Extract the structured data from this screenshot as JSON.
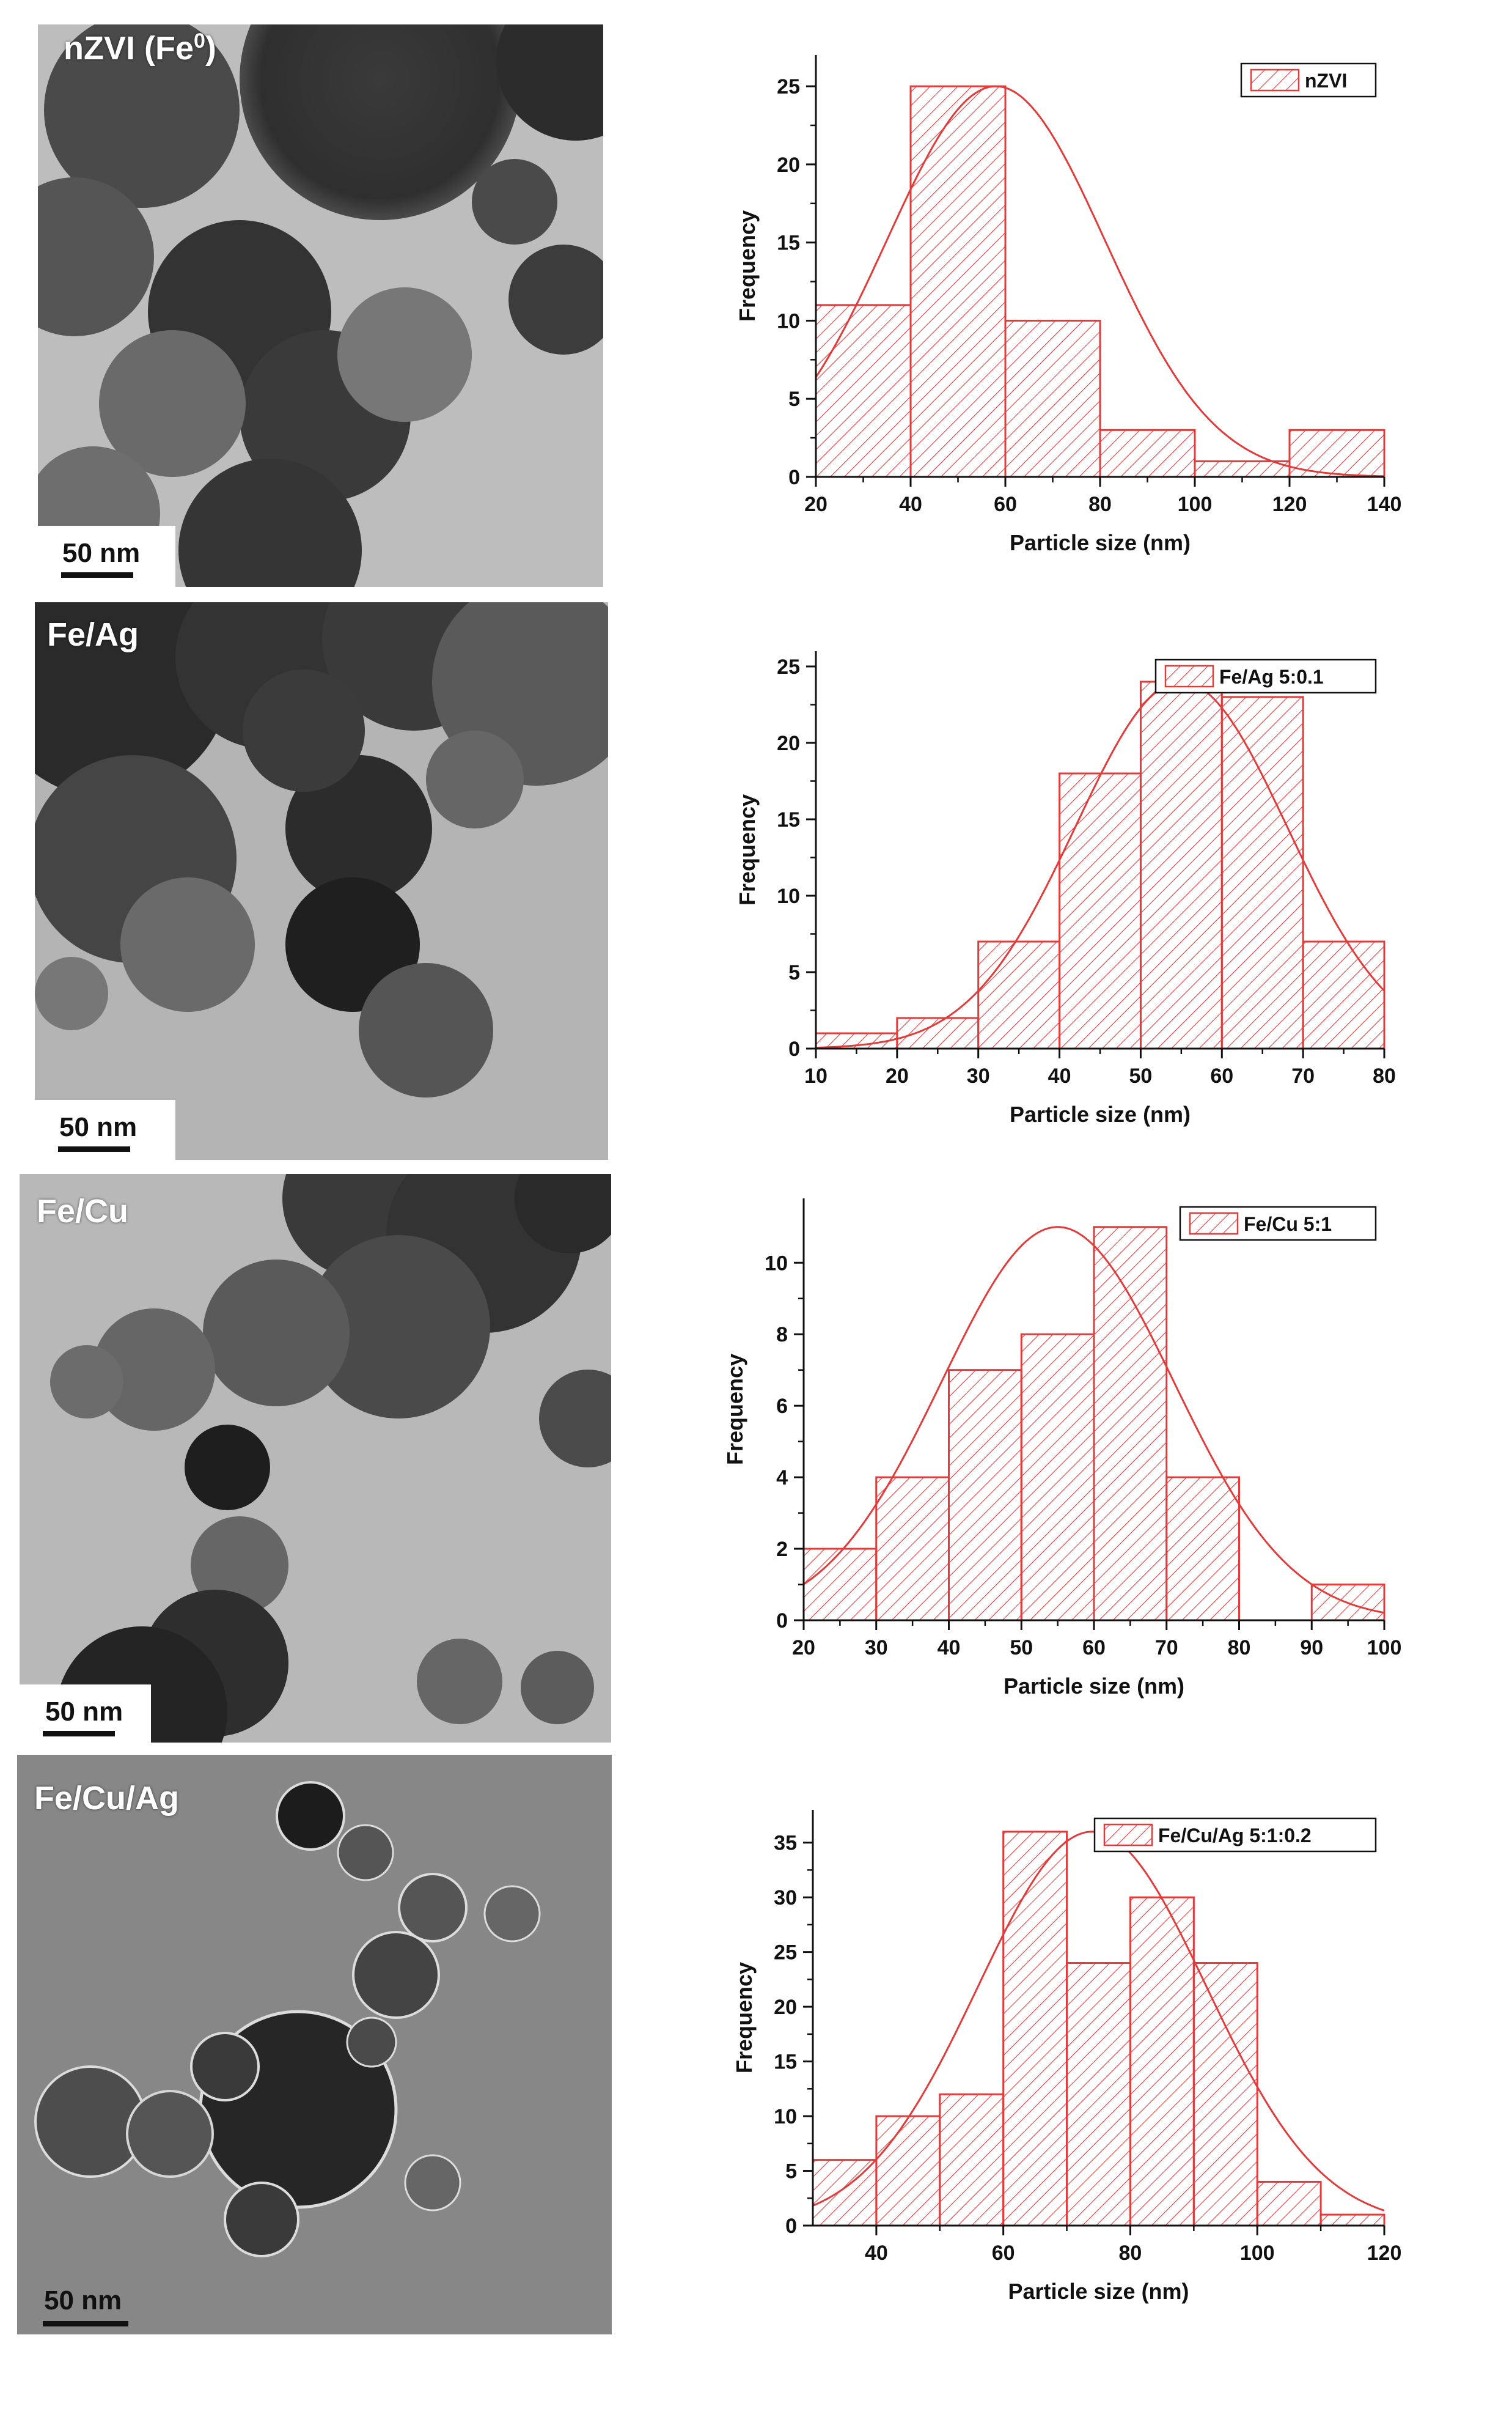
{
  "panels": [
    {
      "tem_label": "nZVI (Fe",
      "tem_label_sup": "0",
      "tem_label_tail": ")",
      "scale_text": "50 nm"
    },
    {
      "tem_label": "Fe/Ag",
      "tem_label_sup": "",
      "tem_label_tail": "",
      "scale_text": "50 nm"
    },
    {
      "tem_label": "Fe/Cu",
      "tem_label_sup": "",
      "tem_label_tail": "",
      "scale_text": "50 nm"
    },
    {
      "tem_label": "Fe/Cu/Ag",
      "tem_label_sup": "",
      "tem_label_tail": "",
      "scale_text": "50 nm"
    }
  ],
  "colors": {
    "bar_stroke": "#e23b3b",
    "hatch": "#e23b3b",
    "fit_line": "#e23b3b",
    "axis": "#111111"
  },
  "chart_data": [
    {
      "type": "bar",
      "xlabel": "Particle size (nm)",
      "ylabel": "Frequency",
      "legend": "nZVI",
      "legend_position": "top-right",
      "xlim": [
        20,
        140
      ],
      "ylim": [
        0,
        27
      ],
      "xticks": [
        20,
        40,
        60,
        80,
        100,
        120,
        140
      ],
      "yticks": [
        0,
        5,
        10,
        15,
        20,
        25
      ],
      "bins": [
        [
          20,
          40
        ],
        [
          40,
          60
        ],
        [
          60,
          80
        ],
        [
          80,
          100
        ],
        [
          100,
          120
        ],
        [
          120,
          140
        ]
      ],
      "values": [
        11,
        25,
        10,
        3,
        1,
        3
      ],
      "fit": {
        "type": "gaussian",
        "center": 58,
        "sigma": 23,
        "amplitude": 25
      }
    },
    {
      "type": "bar",
      "xlabel": "Particle size (nm)",
      "ylabel": "Frequency",
      "legend": "Fe/Ag 5:0.1",
      "legend_position": "top-right",
      "xlim": [
        10,
        80
      ],
      "ylim": [
        0,
        26
      ],
      "xticks": [
        10,
        20,
        30,
        40,
        50,
        60,
        70,
        80
      ],
      "yticks": [
        0,
        5,
        10,
        15,
        20,
        25
      ],
      "bins": [
        [
          10,
          20
        ],
        [
          20,
          30
        ],
        [
          30,
          40
        ],
        [
          40,
          50
        ],
        [
          50,
          60
        ],
        [
          60,
          70
        ],
        [
          70,
          80
        ]
      ],
      "values": [
        1,
        2,
        7,
        18,
        24,
        23,
        7
      ],
      "fit": {
        "type": "gaussian",
        "center": 55,
        "sigma": 13,
        "amplitude": 24
      }
    },
    {
      "type": "bar",
      "xlabel": "Particle size (nm)",
      "ylabel": "Frequency",
      "legend": "Fe/Cu 5:1",
      "legend_position": "top-right",
      "xlim": [
        20,
        100
      ],
      "ylim": [
        0,
        11.8
      ],
      "xticks": [
        20,
        30,
        40,
        50,
        60,
        70,
        80,
        90,
        100
      ],
      "yticks": [
        0,
        2,
        4,
        6,
        8,
        10
      ],
      "bins": [
        [
          20,
          30
        ],
        [
          30,
          40
        ],
        [
          40,
          50
        ],
        [
          50,
          60
        ],
        [
          60,
          70
        ],
        [
          70,
          80
        ],
        [
          90,
          100
        ]
      ],
      "values": [
        2,
        4,
        7,
        8,
        11,
        4,
        1
      ],
      "fit": {
        "type": "gaussian",
        "center": 55,
        "sigma": 16,
        "amplitude": 11
      }
    },
    {
      "type": "bar",
      "xlabel": "Particle size (nm)",
      "ylabel": "Frequency",
      "legend": "Fe/Cu/Ag 5:1:0.2",
      "legend_position": "top-right",
      "xlim": [
        30,
        120
      ],
      "ylim": [
        0,
        38
      ],
      "xticks": [
        40,
        60,
        80,
        100,
        120
      ],
      "yticks": [
        0,
        5,
        10,
        15,
        20,
        25,
        30,
        35
      ],
      "bins": [
        [
          30,
          40
        ],
        [
          40,
          50
        ],
        [
          50,
          60
        ],
        [
          60,
          70
        ],
        [
          70,
          80
        ],
        [
          80,
          90
        ],
        [
          90,
          100
        ],
        [
          100,
          110
        ],
        [
          110,
          120
        ]
      ],
      "values": [
        6,
        10,
        12,
        36,
        24,
        30,
        24,
        4,
        1
      ],
      "fit": {
        "type": "gaussian",
        "center": 74,
        "sigma": 18,
        "amplitude": 36
      }
    }
  ]
}
